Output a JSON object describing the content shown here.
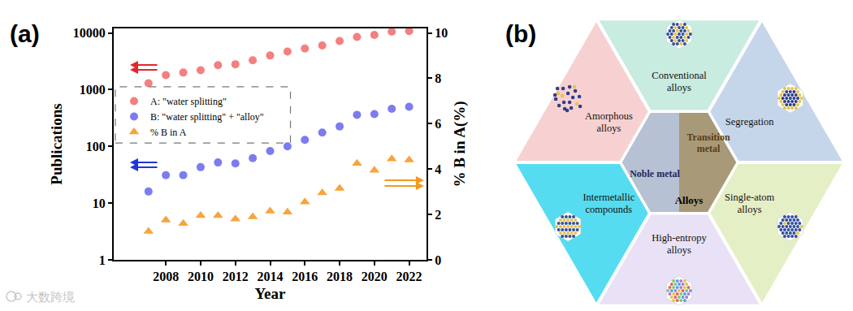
{
  "panel_labels": [
    "(a)",
    "(b)"
  ],
  "watermark": "大数跨境",
  "chart_data": {
    "type": "scatter",
    "x_label": "Year",
    "y_label": "Publications",
    "y2_label": "% B in A(%)",
    "x": [
      2007,
      2008,
      2009,
      2010,
      2011,
      2012,
      2013,
      2014,
      2015,
      2016,
      2017,
      2018,
      2019,
      2020,
      2021,
      2022
    ],
    "series": [
      {
        "name": "A: \"water splitting\"",
        "color": "#f47f7f",
        "marker": "circle",
        "values": [
          1300,
          1800,
          2000,
          2200,
          2700,
          2800,
          3300,
          4000,
          4700,
          5300,
          6000,
          7200,
          8500,
          9200,
          10500,
          10800
        ]
      },
      {
        "name": "B: \"water splitting\" + \"alloy\"",
        "color": "#7c7cf0",
        "marker": "circle",
        "values": [
          16,
          31,
          31,
          43,
          52,
          50,
          62,
          83,
          100,
          130,
          175,
          225,
          360,
          370,
          460,
          500
        ]
      },
      {
        "name": "% B in A",
        "color": "#f7a43a",
        "marker": "triangle",
        "axis": "y2",
        "values": [
          1.25,
          1.75,
          1.6,
          1.95,
          1.95,
          1.8,
          1.9,
          2.15,
          2.1,
          2.55,
          2.95,
          3.15,
          4.25,
          3.95,
          4.45,
          4.4
        ]
      }
    ],
    "xlim": [
      2005,
      2023
    ],
    "xticks": [
      2008,
      2010,
      2012,
      2014,
      2016,
      2018,
      2020,
      2022
    ],
    "ylim": [
      1,
      12000
    ],
    "yticks": [
      1,
      10,
      100,
      1000,
      10000
    ],
    "log": "y",
    "y2lim": [
      0,
      10.2
    ],
    "y2ticks": [
      0,
      2,
      4,
      6,
      8,
      10
    ],
    "grid": false,
    "legend": "left"
  },
  "diagram": {
    "center": {
      "left": [
        "Noble metal"
      ],
      "right": [
        "Transition",
        "metal"
      ],
      "bottom": [
        "Alloys"
      ]
    },
    "sections": [
      {
        "position": "top",
        "label": [
          "Conventional",
          "alloys"
        ],
        "color": "#c8ece0"
      },
      {
        "position": "upper-right",
        "label": [
          "Segregation"
        ],
        "color": "#c6d6ea"
      },
      {
        "position": "lower-right",
        "label": [
          "Single-atom",
          "alloys"
        ],
        "color": "#e5efc6"
      },
      {
        "position": "bottom",
        "label": [
          "High-entropy",
          "alloys"
        ],
        "color": "#e9e1f5"
      },
      {
        "position": "lower-left",
        "label": [
          "Intermetallic",
          "compounds"
        ],
        "color": "#56dcf0"
      },
      {
        "position": "upper-left",
        "label": [
          "Amorphous",
          "alloys"
        ],
        "color": "#f7d1d1"
      }
    ]
  }
}
